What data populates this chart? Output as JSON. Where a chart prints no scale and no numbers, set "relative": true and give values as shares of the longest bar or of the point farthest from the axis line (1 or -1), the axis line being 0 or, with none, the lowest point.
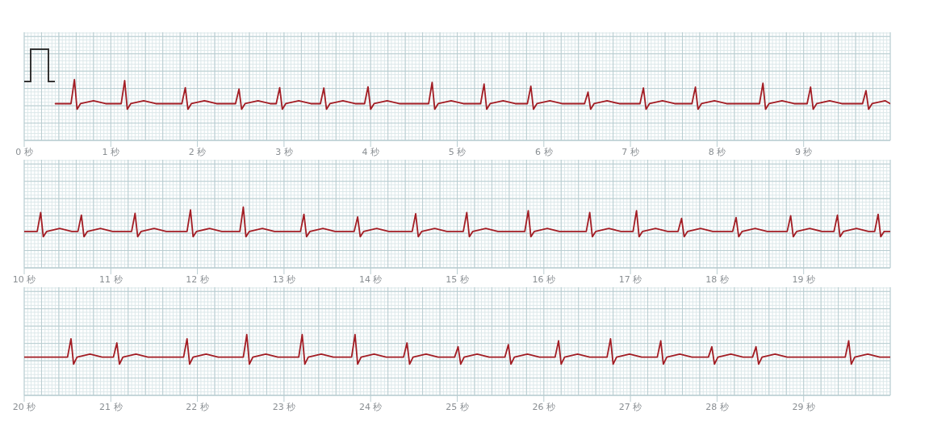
{
  "chart_data": [
    {
      "type": "line",
      "relative": true,
      "grid": true,
      "marker": "none",
      "line_style": "solid",
      "legend": false,
      "xlim": [
        0,
        10
      ],
      "xticks": [
        {
          "value": 0,
          "label": "0 秒"
        },
        {
          "value": 1,
          "label": "1 秒"
        },
        {
          "value": 2,
          "label": "2 秒"
        },
        {
          "value": 3,
          "label": "3 秒"
        },
        {
          "value": 4,
          "label": "4 秒"
        },
        {
          "value": 5,
          "label": "5 秒"
        },
        {
          "value": 6,
          "label": "6 秒"
        },
        {
          "value": 7,
          "label": "7 秒"
        },
        {
          "value": 8,
          "label": "8 秒"
        },
        {
          "value": 9,
          "label": "9 秒"
        }
      ],
      "series": [
        {
          "color": "#a31d24",
          "x": [
            0.36,
            0.54,
            0.58,
            0.61,
            0.65,
            0.8,
            0.94,
            1.12,
            1.16,
            1.19,
            1.23,
            1.38,
            1.52,
            1.82,
            1.86,
            1.89,
            1.93,
            2.08,
            2.22,
            2.44,
            2.48,
            2.51,
            2.55,
            2.7,
            2.84,
            2.91,
            2.95,
            2.98,
            3.02,
            3.17,
            3.31,
            3.42,
            3.46,
            3.49,
            3.53,
            3.68,
            3.82,
            3.93,
            3.97,
            4.0,
            4.04,
            4.19,
            4.33,
            4.67,
            4.71,
            4.74,
            4.78,
            4.93,
            5.07,
            5.27,
            5.31,
            5.34,
            5.38,
            5.53,
            5.67,
            5.81,
            5.85,
            5.88,
            5.92,
            6.07,
            6.21,
            6.47,
            6.51,
            6.54,
            6.58,
            6.73,
            6.87,
            7.11,
            7.15,
            7.18,
            7.22,
            7.37,
            7.51,
            7.71,
            7.75,
            7.78,
            7.82,
            7.97,
            8.11,
            8.49,
            8.53,
            8.56,
            8.6,
            8.75,
            8.89,
            9.04,
            9.08,
            9.11,
            9.15,
            9.3,
            9.44,
            9.68,
            9.72,
            9.75,
            9.79,
            9.94,
            10.0
          ],
          "values": [
            0.19,
            0.19,
            1.0,
            0,
            0.19,
            0.29,
            0.19,
            0.19,
            0.97,
            0,
            0.19,
            0.29,
            0.19,
            0.19,
            0.73,
            0,
            0.19,
            0.29,
            0.19,
            0.19,
            0.68,
            0,
            0.19,
            0.29,
            0.19,
            0.19,
            0.73,
            0,
            0.19,
            0.29,
            0.19,
            0.19,
            0.72,
            0,
            0.19,
            0.29,
            0.19,
            0.19,
            0.76,
            0,
            0.19,
            0.29,
            0.19,
            0.19,
            0.91,
            0,
            0.19,
            0.29,
            0.19,
            0.19,
            0.85,
            0,
            0.19,
            0.29,
            0.19,
            0.19,
            0.78,
            0,
            0.19,
            0.29,
            0.19,
            0.19,
            0.58,
            0,
            0.19,
            0.29,
            0.19,
            0.19,
            0.72,
            0,
            0.19,
            0.29,
            0.19,
            0.19,
            0.75,
            0,
            0.19,
            0.29,
            0.19,
            0.19,
            0.88,
            0,
            0.19,
            0.29,
            0.19,
            0.19,
            0.75,
            0,
            0.19,
            0.29,
            0.19,
            0.19,
            0.63,
            0,
            0.19,
            0.29,
            0.19
          ]
        }
      ]
    },
    {
      "type": "line",
      "relative": true,
      "grid": true,
      "marker": "none",
      "line_style": "solid",
      "legend": false,
      "xlim": [
        10,
        20
      ],
      "xticks": [
        {
          "value": 10,
          "label": "10 秒"
        },
        {
          "value": 11,
          "label": "11 秒"
        },
        {
          "value": 12,
          "label": "12 秒"
        },
        {
          "value": 13,
          "label": "13 秒"
        },
        {
          "value": 14,
          "label": "14 秒"
        },
        {
          "value": 15,
          "label": "15 秒"
        },
        {
          "value": 16,
          "label": "16 秒"
        },
        {
          "value": 17,
          "label": "17 秒"
        },
        {
          "value": 18,
          "label": "18 秒"
        },
        {
          "value": 19,
          "label": "19 秒"
        }
      ],
      "series": [
        {
          "color": "#a31d24",
          "x": [
            10.0,
            10.15,
            10.19,
            10.22,
            10.26,
            10.41,
            10.55,
            10.62,
            10.66,
            10.69,
            10.73,
            10.88,
            11.02,
            11.24,
            11.28,
            11.31,
            11.35,
            11.5,
            11.64,
            11.88,
            11.92,
            11.95,
            11.99,
            12.14,
            12.28,
            12.49,
            12.53,
            12.56,
            12.6,
            12.75,
            12.89,
            13.19,
            13.23,
            13.26,
            13.3,
            13.45,
            13.59,
            13.81,
            13.85,
            13.88,
            13.92,
            14.07,
            14.21,
            14.48,
            14.52,
            14.55,
            14.59,
            14.74,
            14.88,
            15.07,
            15.11,
            15.14,
            15.18,
            15.33,
            15.47,
            15.78,
            15.82,
            15.85,
            15.89,
            16.04,
            16.18,
            16.49,
            16.53,
            16.56,
            16.6,
            16.75,
            16.89,
            17.03,
            17.07,
            17.1,
            17.14,
            17.29,
            17.43,
            17.55,
            17.59,
            17.62,
            17.66,
            17.81,
            17.95,
            18.18,
            18.22,
            18.25,
            18.29,
            18.44,
            18.58,
            18.81,
            18.85,
            18.88,
            18.92,
            19.07,
            19.21,
            19.35,
            19.39,
            19.42,
            19.46,
            19.61,
            19.75,
            19.82,
            19.86,
            19.89,
            19.93,
            20.0
          ],
          "values": [
            0.18,
            0.18,
            0.82,
            0,
            0.18,
            0.28,
            0.18,
            0.18,
            0.73,
            0,
            0.18,
            0.28,
            0.18,
            0.18,
            0.79,
            0,
            0.18,
            0.28,
            0.18,
            0.18,
            0.91,
            0,
            0.18,
            0.28,
            0.18,
            0.18,
            1.0,
            0,
            0.18,
            0.28,
            0.18,
            0.18,
            0.76,
            0,
            0.18,
            0.28,
            0.18,
            0.18,
            0.67,
            0,
            0.18,
            0.28,
            0.18,
            0.18,
            0.78,
            0,
            0.18,
            0.28,
            0.18,
            0.18,
            0.82,
            0,
            0.18,
            0.28,
            0.18,
            0.18,
            0.88,
            0,
            0.18,
            0.28,
            0.18,
            0.18,
            0.82,
            0,
            0.18,
            0.28,
            0.18,
            0.18,
            0.88,
            0,
            0.18,
            0.28,
            0.18,
            0.18,
            0.62,
            0,
            0.18,
            0.28,
            0.18,
            0.18,
            0.65,
            0,
            0.18,
            0.28,
            0.18,
            0.18,
            0.71,
            0,
            0.18,
            0.28,
            0.18,
            0.18,
            0.73,
            0,
            0.18,
            0.28,
            0.18,
            0.18,
            0.76,
            0,
            0.18,
            0.18
          ]
        }
      ]
    },
    {
      "type": "line",
      "relative": true,
      "grid": true,
      "marker": "none",
      "line_style": "solid",
      "legend": false,
      "xlim": [
        20,
        30
      ],
      "xticks": [
        {
          "value": 20,
          "label": "20 秒"
        },
        {
          "value": 21,
          "label": "21 秒"
        },
        {
          "value": 22,
          "label": "22 秒"
        },
        {
          "value": 23,
          "label": "23 秒"
        },
        {
          "value": 24,
          "label": "24 秒"
        },
        {
          "value": 25,
          "label": "25 秒"
        },
        {
          "value": 26,
          "label": "26 秒"
        },
        {
          "value": 27,
          "label": "27 秒"
        },
        {
          "value": 28,
          "label": "28 秒"
        },
        {
          "value": 29,
          "label": "29 秒"
        }
      ],
      "series": [
        {
          "color": "#a31d24",
          "x": [
            20.0,
            20.5,
            20.54,
            20.57,
            20.61,
            20.76,
            20.9,
            21.03,
            21.07,
            21.1,
            21.14,
            21.29,
            21.43,
            21.84,
            21.88,
            21.91,
            21.95,
            22.1,
            22.24,
            22.53,
            22.57,
            22.6,
            22.64,
            22.79,
            22.93,
            23.17,
            23.21,
            23.24,
            23.28,
            23.43,
            23.57,
            23.78,
            23.82,
            23.85,
            23.89,
            24.04,
            24.18,
            24.38,
            24.42,
            24.45,
            24.49,
            24.64,
            24.78,
            24.97,
            25.01,
            25.04,
            25.08,
            25.23,
            25.37,
            25.55,
            25.59,
            25.62,
            25.66,
            25.81,
            25.95,
            26.13,
            26.17,
            26.2,
            26.24,
            26.39,
            26.53,
            26.73,
            26.77,
            26.8,
            26.84,
            26.99,
            27.13,
            27.31,
            27.35,
            27.38,
            27.42,
            27.57,
            27.71,
            27.9,
            27.94,
            27.97,
            28.01,
            28.16,
            28.3,
            28.41,
            28.45,
            28.48,
            28.52,
            28.67,
            28.81,
            29.48,
            29.52,
            29.55,
            29.59,
            29.74,
            29.88,
            30.0
          ],
          "values": [
            0.24,
            0.24,
            0.86,
            0,
            0.24,
            0.34,
            0.24,
            0.24,
            0.72,
            0,
            0.24,
            0.34,
            0.24,
            0.24,
            0.86,
            0,
            0.24,
            0.34,
            0.24,
            0.24,
            1.0,
            0,
            0.24,
            0.34,
            0.24,
            0.24,
            1.0,
            0,
            0.24,
            0.34,
            0.24,
            0.24,
            1.0,
            0,
            0.24,
            0.34,
            0.24,
            0.24,
            0.72,
            0,
            0.24,
            0.34,
            0.24,
            0.24,
            0.59,
            0,
            0.24,
            0.34,
            0.24,
            0.24,
            0.66,
            0,
            0.24,
            0.34,
            0.24,
            0.24,
            0.79,
            0,
            0.24,
            0.34,
            0.24,
            0.24,
            0.86,
            0,
            0.24,
            0.34,
            0.24,
            0.24,
            0.79,
            0,
            0.24,
            0.34,
            0.24,
            0.24,
            0.59,
            0,
            0.24,
            0.34,
            0.24,
            0.24,
            0.59,
            0,
            0.24,
            0.34,
            0.24,
            0.24,
            0.79,
            0,
            0.24,
            0.34,
            0.24,
            0.24
          ]
        }
      ]
    }
  ]
}
